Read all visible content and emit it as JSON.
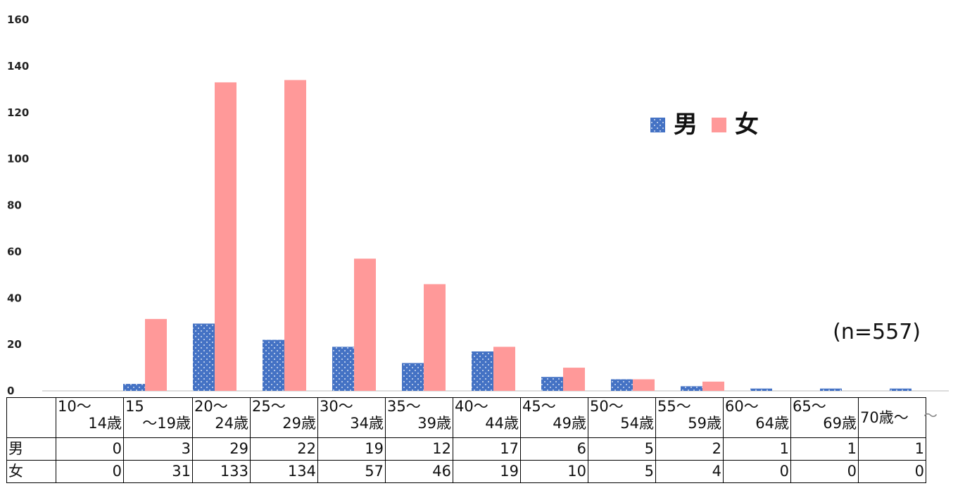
{
  "chart_data": {
    "type": "bar",
    "categories": [
      "10～14歳",
      "15～19歳",
      "20～24歳",
      "25～29歳",
      "30～34歳",
      "35～39歳",
      "40～44歳",
      "45～49歳",
      "50～54歳",
      "55～59歳",
      "60～64歳",
      "65～69歳",
      "70歳～"
    ],
    "category_lines": [
      [
        "10～",
        "14歳"
      ],
      [
        "15",
        "～19歳"
      ],
      [
        "20～",
        "24歳"
      ],
      [
        "25～",
        "29歳"
      ],
      [
        "30～",
        "34歳"
      ],
      [
        "35～",
        "39歳"
      ],
      [
        "40～",
        "44歳"
      ],
      [
        "45～",
        "49歳"
      ],
      [
        "50～",
        "54歳"
      ],
      [
        "55～",
        "59歳"
      ],
      [
        "60～",
        "64歳"
      ],
      [
        "65～",
        "69歳"
      ],
      [
        "70歳～",
        ""
      ]
    ],
    "series": [
      {
        "name": "男",
        "values": [
          0,
          3,
          29,
          22,
          19,
          12,
          17,
          6,
          5,
          2,
          1,
          1,
          1
        ],
        "color": "#4472C4",
        "pattern": "dotted"
      },
      {
        "name": "女",
        "values": [
          0,
          31,
          133,
          134,
          57,
          46,
          19,
          10,
          5,
          4,
          0,
          0,
          0
        ],
        "color": "#FF9999"
      }
    ],
    "ylim": [
      0,
      160
    ],
    "yticks": [
      "0",
      "20",
      "40",
      "60",
      "80",
      "100",
      "120",
      "140",
      "160"
    ],
    "legend_position": "top-right",
    "annotation": "(n=557)",
    "data_table": true,
    "trailing_mark": "～"
  }
}
